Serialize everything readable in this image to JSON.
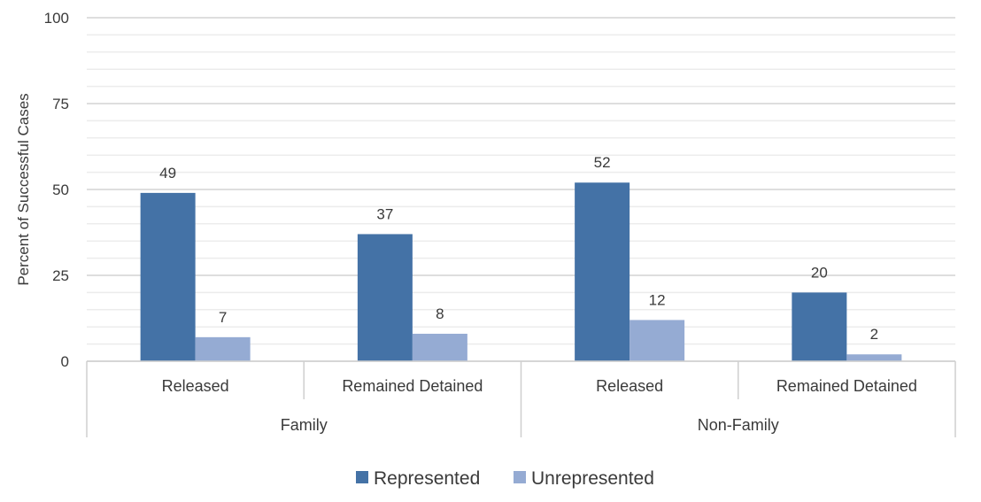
{
  "chart_data": {
    "type": "bar",
    "ylabel": "Percent of Successful Cases",
    "ylim": [
      0,
      100
    ],
    "yticks": [
      0,
      25,
      50,
      75,
      100
    ],
    "grid": true,
    "legend_position": "bottom",
    "groups": [
      {
        "label": "Family",
        "categories": [
          "Released",
          "Remained Detained"
        ]
      },
      {
        "label": "Non-Family",
        "categories": [
          "Released",
          "Remained Detained"
        ]
      }
    ],
    "categories": [
      "Released",
      "Remained Detained",
      "Released",
      "Remained Detained"
    ],
    "series": [
      {
        "name": "Represented",
        "color": "#4472a6",
        "values": [
          49,
          37,
          52,
          20
        ]
      },
      {
        "name": "Unrepresented",
        "color": "#95abd3",
        "values": [
          7,
          8,
          12,
          2
        ]
      }
    ]
  }
}
